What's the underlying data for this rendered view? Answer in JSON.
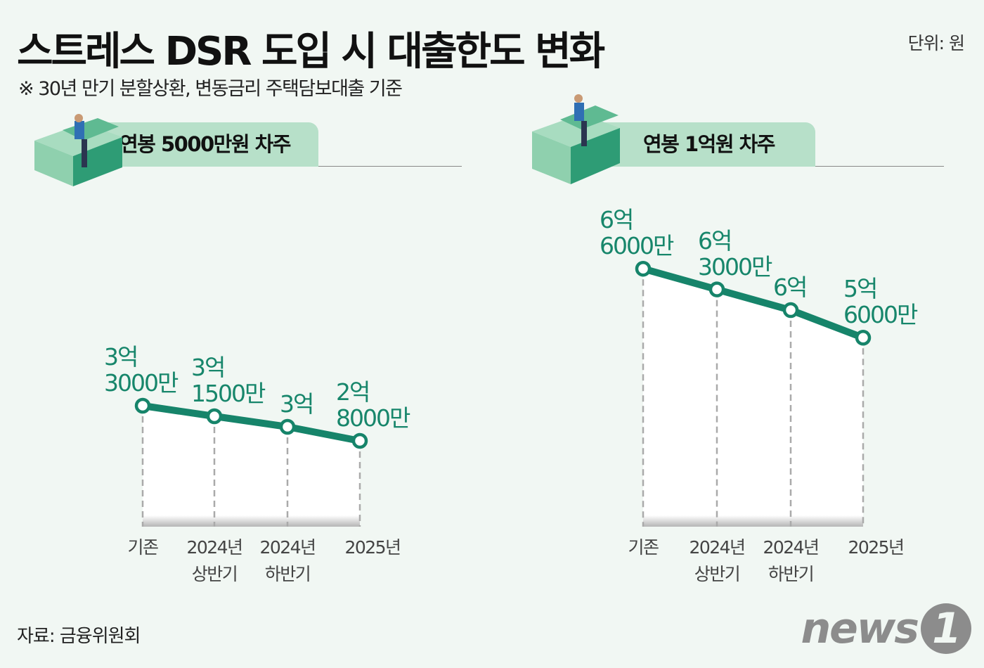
{
  "header": {
    "title": "스트레스 DSR 도입 시 대출한도 변화",
    "unit": "단위: 원",
    "subtitle": "※ 30년 만기 분할상환, 변동금리 주택담보대출 기준"
  },
  "footer": {
    "source": "자료: 금융위원회",
    "logo": "news1"
  },
  "colors": {
    "line": "#16846a",
    "tab": "#b7e0c9",
    "background": "#f1f7f3"
  },
  "chart_data": [
    {
      "type": "line",
      "title": "연봉 5000만원 차주",
      "categories": [
        "기존",
        "2024년\n상반기",
        "2024년\n하반기",
        "2025년"
      ],
      "values": [
        33000,
        31500,
        30000,
        28000
      ],
      "value_unit": "만원",
      "labels": [
        "3억\n3000만",
        "3억\n1500만",
        "3억",
        "2억\n8000만"
      ],
      "ylim": [
        16200,
        40000
      ]
    },
    {
      "type": "line",
      "title": "연봉 1억원 차주",
      "categories": [
        "기존",
        "2024년\n상반기",
        "2024년\n하반기",
        "2025년"
      ],
      "values": [
        66000,
        63000,
        60000,
        56000
      ],
      "value_unit": "만원",
      "labels": [
        "6억\n6000만",
        "6억\n3000만",
        "6억",
        "5억\n6000만"
      ],
      "ylim": [
        29000,
        70000
      ]
    }
  ]
}
